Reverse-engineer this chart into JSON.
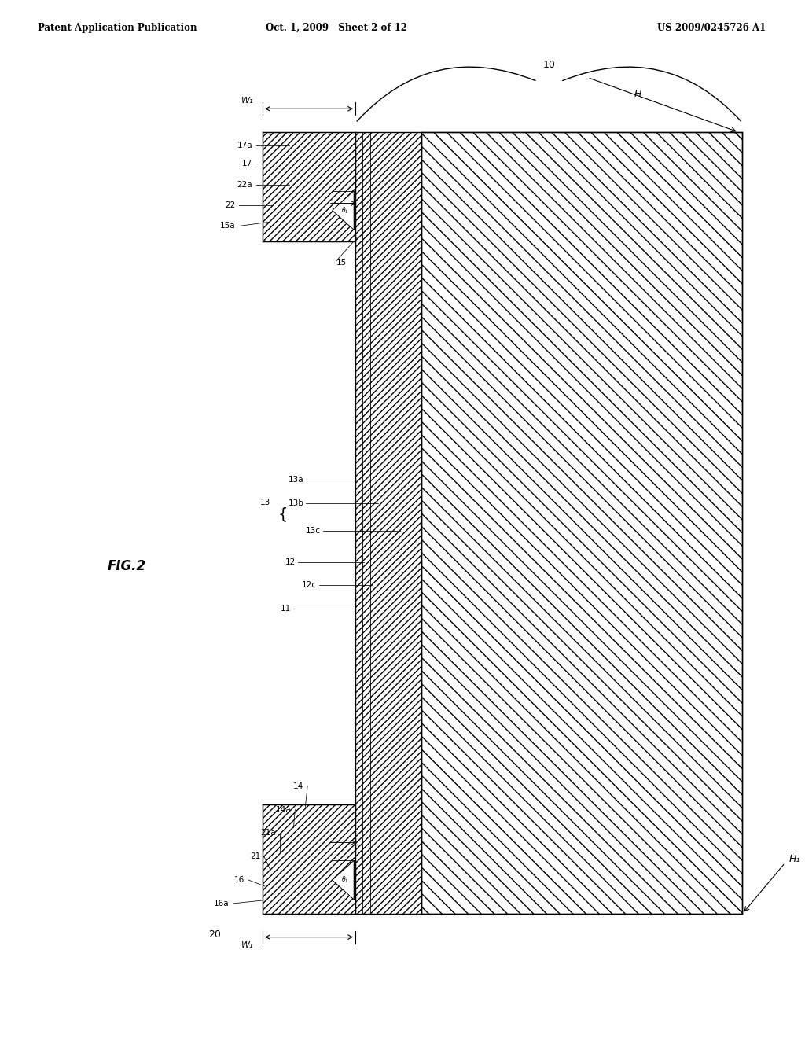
{
  "fig_width": 10.24,
  "fig_height": 13.2,
  "bg_color": "#ffffff",
  "header_left": "Patent Application Publication",
  "header_center": "Oct. 1, 2009   Sheet 2 of 12",
  "header_right": "US 2009/0245726 A1",
  "fig_label": "FIG.2"
}
